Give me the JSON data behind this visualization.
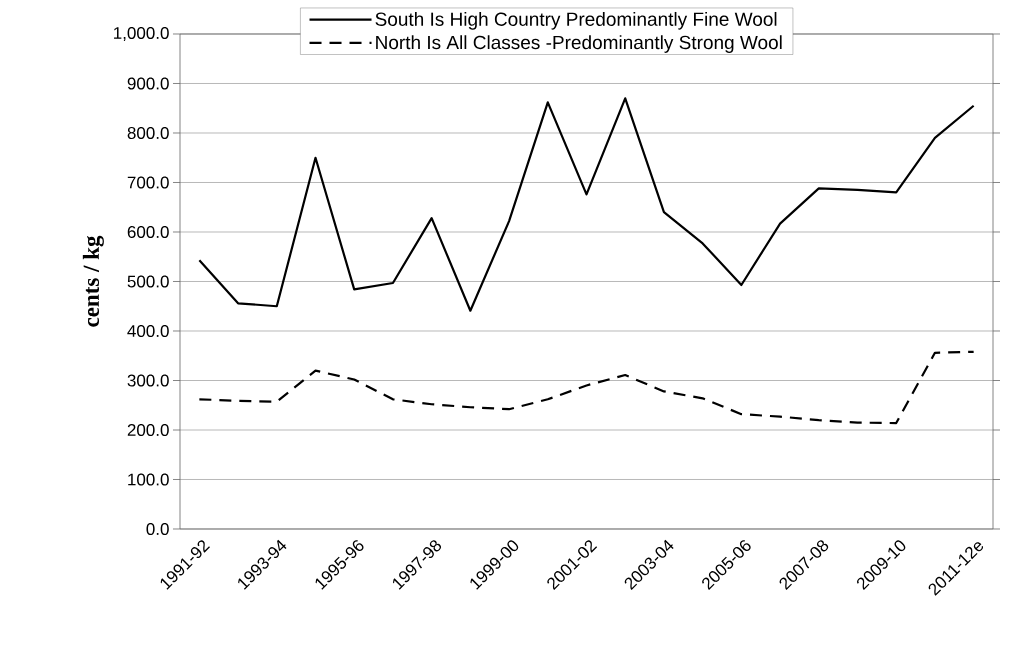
{
  "chart_data": {
    "type": "line",
    "ylabel": "cents / kg",
    "categories": [
      "1991-92",
      null,
      "1993-94",
      null,
      "1995-96",
      null,
      "1997-98",
      null,
      "1999-00",
      null,
      "2001-02",
      null,
      "2003-04",
      null,
      "2005-06",
      null,
      "2007-08",
      null,
      "2009-10",
      null,
      "2011-12e"
    ],
    "series": [
      {
        "name": "South Is High Country Predominantly Fine Wool",
        "color": "#000000",
        "line_style": "solid",
        "values": [
          543,
          456,
          450,
          750,
          484,
          497,
          628,
          441,
          622,
          862,
          676,
          870,
          640,
          577,
          493,
          617,
          688,
          685,
          680,
          790,
          855
        ]
      },
      {
        "name": "North Is All Classes -Predominantly Strong Wool",
        "color": "#000000",
        "line_style": "dashed",
        "values": [
          262,
          259,
          257,
          320,
          302,
          262,
          252,
          246,
          242,
          262,
          290,
          311,
          278,
          264,
          232,
          227,
          220,
          215,
          214,
          356,
          358
        ]
      }
    ],
    "ylim": [
      0,
      1000
    ],
    "yticks": [
      {
        "value": 0,
        "label": "0.0"
      },
      {
        "value": 100,
        "label": "100.0"
      },
      {
        "value": 200,
        "label": "200.0"
      },
      {
        "value": 300,
        "label": "300.0"
      },
      {
        "value": 400,
        "label": "400.0"
      },
      {
        "value": 500,
        "label": "500.0"
      },
      {
        "value": 600,
        "label": "600.0"
      },
      {
        "value": 700,
        "label": "700.0"
      },
      {
        "value": 800,
        "label": "800.0"
      },
      {
        "value": 900,
        "label": "900.0"
      },
      {
        "value": 1000,
        "label": "1,000.0"
      }
    ],
    "grid": "y",
    "legend": "top"
  }
}
